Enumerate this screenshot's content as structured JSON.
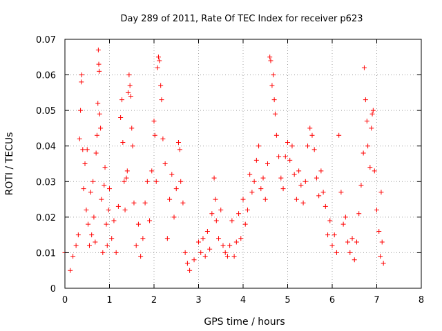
{
  "chart_data": {
    "type": "scatter",
    "title": "Day 289 of 2011, Rate Of TEC Index for receiver p623",
    "xlabel": "GPS time / hours",
    "ylabel": "ROTI / TECUs",
    "xlim": [
      0,
      8
    ],
    "ylim": [
      0,
      0.07
    ],
    "xticks": [
      0,
      1,
      2,
      3,
      4,
      5,
      6,
      7,
      8
    ],
    "xtick_labels": [
      "0",
      "1",
      "2",
      "3",
      "4",
      "5",
      "6",
      "7",
      "8"
    ],
    "yticks": [
      0,
      0.01,
      0.02,
      0.03,
      0.04,
      0.05,
      0.06,
      0.07
    ],
    "ytick_labels": [
      "0",
      "0.01",
      "0.02",
      "0.03",
      "0.04",
      "0.05",
      "0.06",
      "0.07"
    ],
    "grid": true,
    "marker": "+",
    "marker_color": "#ff0000",
    "series": [
      {
        "name": "ROTI",
        "points": [
          [
            0.0,
            0.01
          ],
          [
            0.12,
            0.005
          ],
          [
            0.18,
            0.009
          ],
          [
            0.25,
            0.012
          ],
          [
            0.3,
            0.015
          ],
          [
            0.33,
            0.042
          ],
          [
            0.35,
            0.05
          ],
          [
            0.37,
            0.058
          ],
          [
            0.38,
            0.06
          ],
          [
            0.4,
            0.039
          ],
          [
            0.42,
            0.028
          ],
          [
            0.45,
            0.035
          ],
          [
            0.48,
            0.022
          ],
          [
            0.5,
            0.039
          ],
          [
            0.52,
            0.018
          ],
          [
            0.55,
            0.012
          ],
          [
            0.58,
            0.027
          ],
          [
            0.6,
            0.015
          ],
          [
            0.63,
            0.03
          ],
          [
            0.65,
            0.02
          ],
          [
            0.68,
            0.013
          ],
          [
            0.7,
            0.038
          ],
          [
            0.72,
            0.043
          ],
          [
            0.74,
            0.052
          ],
          [
            0.75,
            0.067
          ],
          [
            0.76,
            0.063
          ],
          [
            0.77,
            0.061
          ],
          [
            0.78,
            0.049
          ],
          [
            0.8,
            0.045
          ],
          [
            0.82,
            0.025
          ],
          [
            0.85,
            0.01
          ],
          [
            0.88,
            0.029
          ],
          [
            0.9,
            0.034
          ],
          [
            0.93,
            0.018
          ],
          [
            0.95,
            0.012
          ],
          [
            0.98,
            0.022
          ],
          [
            1.0,
            0.028
          ],
          [
            1.05,
            0.014
          ],
          [
            1.1,
            0.019
          ],
          [
            1.15,
            0.01
          ],
          [
            1.2,
            0.023
          ],
          [
            1.25,
            0.048
          ],
          [
            1.28,
            0.053
          ],
          [
            1.3,
            0.041
          ],
          [
            1.33,
            0.03
          ],
          [
            1.35,
            0.022
          ],
          [
            1.38,
            0.031
          ],
          [
            1.4,
            0.033
          ],
          [
            1.42,
            0.055
          ],
          [
            1.44,
            0.06
          ],
          [
            1.46,
            0.057
          ],
          [
            1.48,
            0.054
          ],
          [
            1.5,
            0.045
          ],
          [
            1.52,
            0.04
          ],
          [
            1.55,
            0.024
          ],
          [
            1.6,
            0.012
          ],
          [
            1.65,
            0.018
          ],
          [
            1.7,
            0.009
          ],
          [
            1.75,
            0.014
          ],
          [
            1.8,
            0.024
          ],
          [
            1.85,
            0.03
          ],
          [
            1.9,
            0.019
          ],
          [
            1.95,
            0.033
          ],
          [
            2.0,
            0.047
          ],
          [
            2.02,
            0.043
          ],
          [
            2.05,
            0.03
          ],
          [
            2.08,
            0.062
          ],
          [
            2.1,
            0.065
          ],
          [
            2.12,
            0.064
          ],
          [
            2.15,
            0.057
          ],
          [
            2.17,
            0.053
          ],
          [
            2.2,
            0.042
          ],
          [
            2.25,
            0.035
          ],
          [
            2.3,
            0.014
          ],
          [
            2.35,
            0.025
          ],
          [
            2.4,
            0.032
          ],
          [
            2.45,
            0.02
          ],
          [
            2.5,
            0.028
          ],
          [
            2.55,
            0.041
          ],
          [
            2.58,
            0.039
          ],
          [
            2.6,
            0.03
          ],
          [
            2.65,
            0.024
          ],
          [
            2.7,
            0.01
          ],
          [
            2.75,
            0.007
          ],
          [
            2.8,
            0.005
          ],
          [
            2.9,
            0.008
          ],
          [
            3.0,
            0.013
          ],
          [
            3.05,
            0.01
          ],
          [
            3.1,
            0.014
          ],
          [
            3.15,
            0.009
          ],
          [
            3.2,
            0.016
          ],
          [
            3.25,
            0.011
          ],
          [
            3.3,
            0.021
          ],
          [
            3.35,
            0.031
          ],
          [
            3.38,
            0.025
          ],
          [
            3.4,
            0.019
          ],
          [
            3.45,
            0.014
          ],
          [
            3.5,
            0.022
          ],
          [
            3.55,
            0.012
          ],
          [
            3.6,
            0.01
          ],
          [
            3.65,
            0.009
          ],
          [
            3.7,
            0.012
          ],
          [
            3.75,
            0.019
          ],
          [
            3.8,
            0.009
          ],
          [
            3.85,
            0.013
          ],
          [
            3.9,
            0.021
          ],
          [
            3.95,
            0.014
          ],
          [
            4.0,
            0.025
          ],
          [
            4.05,
            0.018
          ],
          [
            4.1,
            0.022
          ],
          [
            4.15,
            0.032
          ],
          [
            4.2,
            0.027
          ],
          [
            4.25,
            0.03
          ],
          [
            4.3,
            0.036
          ],
          [
            4.35,
            0.04
          ],
          [
            4.4,
            0.028
          ],
          [
            4.45,
            0.031
          ],
          [
            4.5,
            0.025
          ],
          [
            4.55,
            0.035
          ],
          [
            4.6,
            0.065
          ],
          [
            4.62,
            0.064
          ],
          [
            4.65,
            0.057
          ],
          [
            4.68,
            0.06
          ],
          [
            4.7,
            0.053
          ],
          [
            4.72,
            0.049
          ],
          [
            4.75,
            0.043
          ],
          [
            4.8,
            0.037
          ],
          [
            4.85,
            0.031
          ],
          [
            4.9,
            0.028
          ],
          [
            4.95,
            0.037
          ],
          [
            5.0,
            0.041
          ],
          [
            5.05,
            0.036
          ],
          [
            5.1,
            0.04
          ],
          [
            5.15,
            0.032
          ],
          [
            5.2,
            0.025
          ],
          [
            5.25,
            0.033
          ],
          [
            5.3,
            0.029
          ],
          [
            5.35,
            0.024
          ],
          [
            5.4,
            0.03
          ],
          [
            5.45,
            0.04
          ],
          [
            5.5,
            0.045
          ],
          [
            5.55,
            0.043
          ],
          [
            5.6,
            0.039
          ],
          [
            5.65,
            0.031
          ],
          [
            5.7,
            0.026
          ],
          [
            5.75,
            0.033
          ],
          [
            5.8,
            0.027
          ],
          [
            5.85,
            0.023
          ],
          [
            5.9,
            0.015
          ],
          [
            5.95,
            0.019
          ],
          [
            6.0,
            0.012
          ],
          [
            6.05,
            0.015
          ],
          [
            6.1,
            0.01
          ],
          [
            6.15,
            0.043
          ],
          [
            6.2,
            0.027
          ],
          [
            6.25,
            0.018
          ],
          [
            6.3,
            0.02
          ],
          [
            6.35,
            0.013
          ],
          [
            6.4,
            0.01
          ],
          [
            6.45,
            0.014
          ],
          [
            6.5,
            0.008
          ],
          [
            6.55,
            0.013
          ],
          [
            6.6,
            0.021
          ],
          [
            6.65,
            0.029
          ],
          [
            6.7,
            0.038
          ],
          [
            6.72,
            0.062
          ],
          [
            6.75,
            0.053
          ],
          [
            6.78,
            0.047
          ],
          [
            6.8,
            0.04
          ],
          [
            6.85,
            0.034
          ],
          [
            6.88,
            0.045
          ],
          [
            6.9,
            0.049
          ],
          [
            6.92,
            0.05
          ],
          [
            6.95,
            0.033
          ],
          [
            7.0,
            0.022
          ],
          [
            7.05,
            0.016
          ],
          [
            7.08,
            0.009
          ],
          [
            7.1,
            0.027
          ],
          [
            7.12,
            0.013
          ],
          [
            7.15,
            0.007
          ]
        ]
      }
    ]
  }
}
